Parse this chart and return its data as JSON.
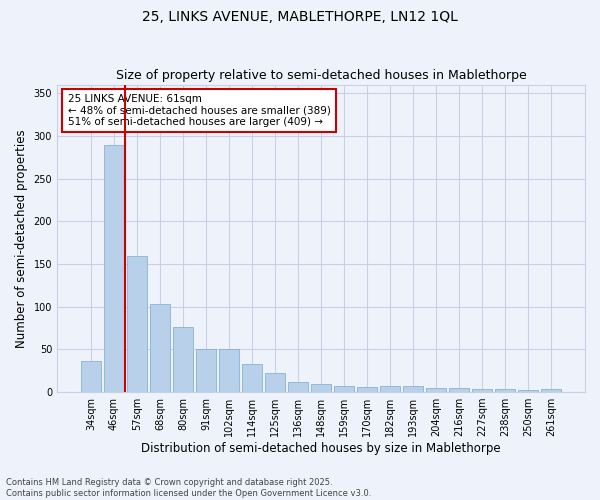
{
  "title_line1": "25, LINKS AVENUE, MABLETHORPE, LN12 1QL",
  "title_line2": "Size of property relative to semi-detached houses in Mablethorpe",
  "xlabel": "Distribution of semi-detached houses by size in Mablethorpe",
  "ylabel": "Number of semi-detached properties",
  "categories": [
    "34sqm",
    "46sqm",
    "57sqm",
    "68sqm",
    "80sqm",
    "91sqm",
    "102sqm",
    "114sqm",
    "125sqm",
    "136sqm",
    "148sqm",
    "159sqm",
    "170sqm",
    "182sqm",
    "193sqm",
    "204sqm",
    "216sqm",
    "227sqm",
    "238sqm",
    "250sqm",
    "261sqm"
  ],
  "values": [
    36,
    289,
    159,
    103,
    76,
    50,
    50,
    33,
    22,
    12,
    9,
    7,
    6,
    7,
    7,
    5,
    5,
    4,
    4,
    2,
    4
  ],
  "bar_color": "#b8d0ea",
  "bar_edge_color": "#7aaacf",
  "vline_color": "#cc0000",
  "annotation_text": "25 LINKS AVENUE: 61sqm\n← 48% of semi-detached houses are smaller (389)\n51% of semi-detached houses are larger (409) →",
  "annotation_box_color": "#ffffff",
  "annotation_box_edge": "#cc0000",
  "ylim": [
    0,
    360
  ],
  "yticks": [
    0,
    50,
    100,
    150,
    200,
    250,
    300,
    350
  ],
  "footnote": "Contains HM Land Registry data © Crown copyright and database right 2025.\nContains public sector information licensed under the Open Government Licence v3.0.",
  "bg_color": "#eef2fb",
  "plot_bg_color": "#eef2fb",
  "grid_color": "#c8d0e8",
  "title_fontsize": 10,
  "subtitle_fontsize": 9,
  "axis_label_fontsize": 8.5,
  "tick_fontsize": 7,
  "annotation_fontsize": 7.5,
  "footnote_fontsize": 6
}
